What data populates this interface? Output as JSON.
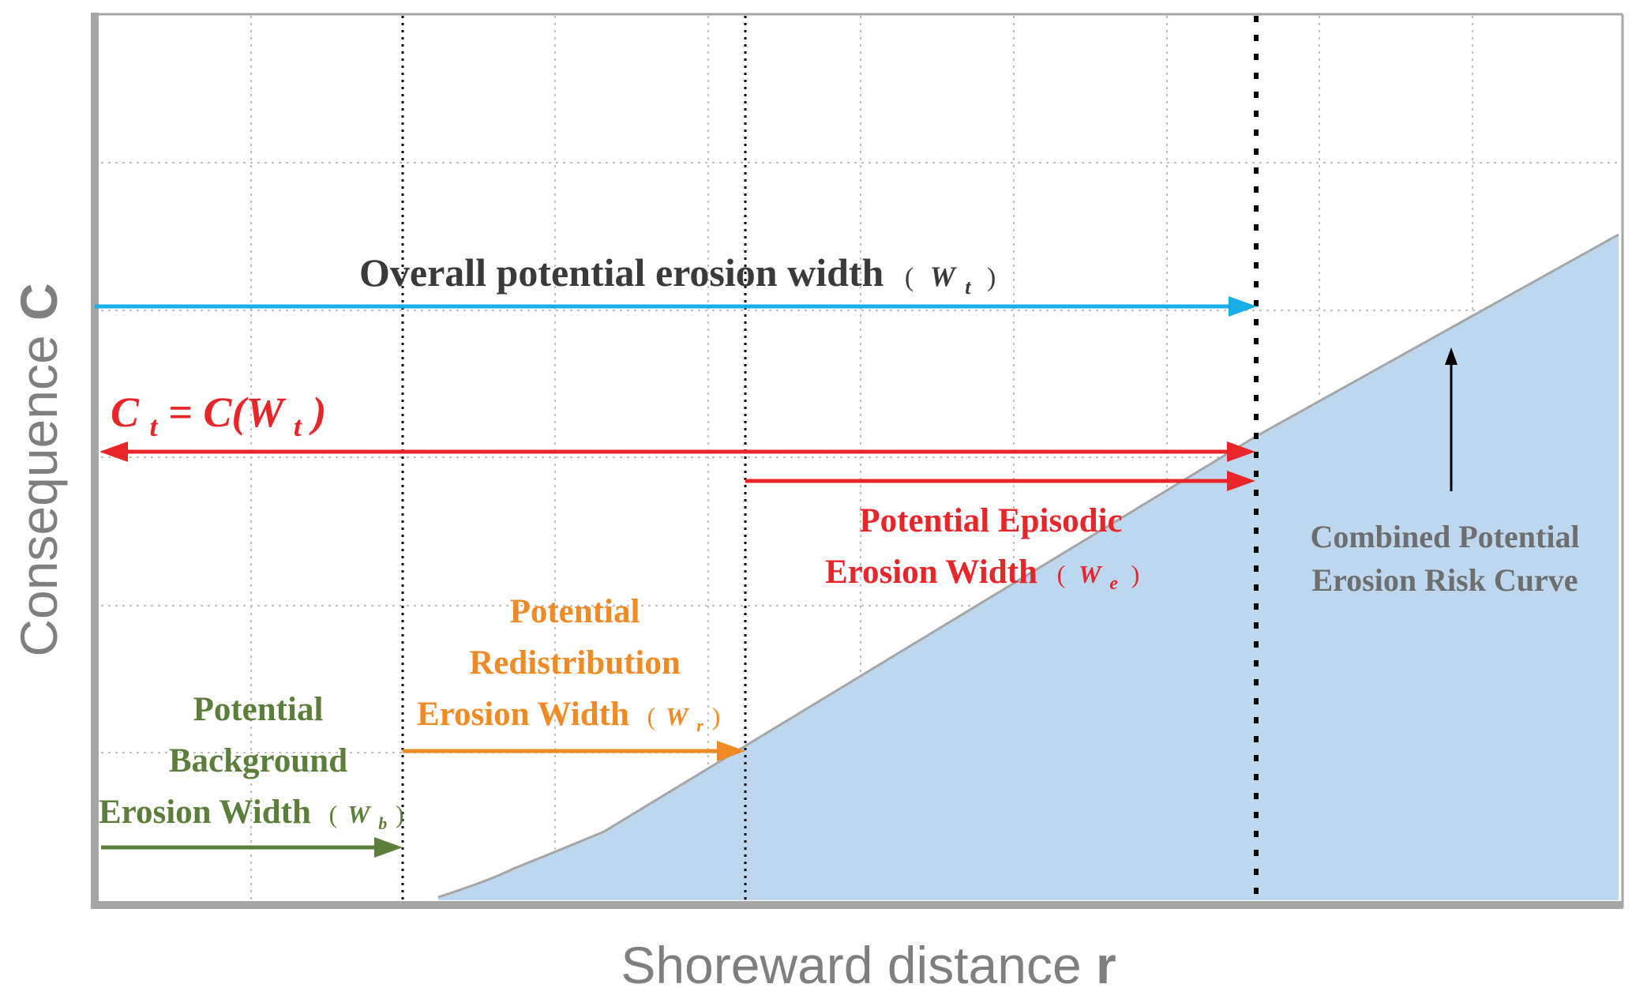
{
  "axes": {
    "y_label_main": "Consequence ",
    "y_label_symbol": "C",
    "x_label_main": "Shoreward distance ",
    "x_label_symbol": "r"
  },
  "labels": {
    "overall": {
      "text": "Overall potential erosion width",
      "paren_open": "(",
      "var": "W",
      "sub": "t",
      "paren_close": ")"
    },
    "consequence_eq": {
      "c": "C",
      "c_sub": "t",
      "rhs": " = C(W",
      "rhs_sub": "t",
      "close": ")"
    },
    "episodic": {
      "line1": "Potential Episodic",
      "line2": "Erosion Width",
      "paren_open": "(",
      "var": "W",
      "sub": "e",
      "paren_close": ")"
    },
    "redistribution": {
      "line1": "Potential",
      "line2": "Redistribution",
      "line3": "Erosion Width",
      "paren_open": "(",
      "var": "W",
      "sub": "r",
      "paren_close": ")"
    },
    "background": {
      "line1": "Potential",
      "line2": "Background",
      "line3": "Erosion Width",
      "paren_open": "(",
      "var": "W",
      "sub": "b",
      "paren_close": ")"
    },
    "risk_curve": {
      "line1": "Combined Potential",
      "line2": "Erosion Risk Curve"
    }
  },
  "colors": {
    "axis": "#a6a6a6",
    "grid": "#bfbfbf",
    "area_fill": "#bdd7ee",
    "curve": "#a6a6a6",
    "overall": "#1aaee6",
    "consequence": "#e8262a",
    "episodic": "#e8262a",
    "redistribution": "#f08a25",
    "background": "#5b7e3a",
    "dark_text": "#3a3a3a",
    "risk_text": "#6e6e6e",
    "axis_label": "#7f7f7f"
  }
}
